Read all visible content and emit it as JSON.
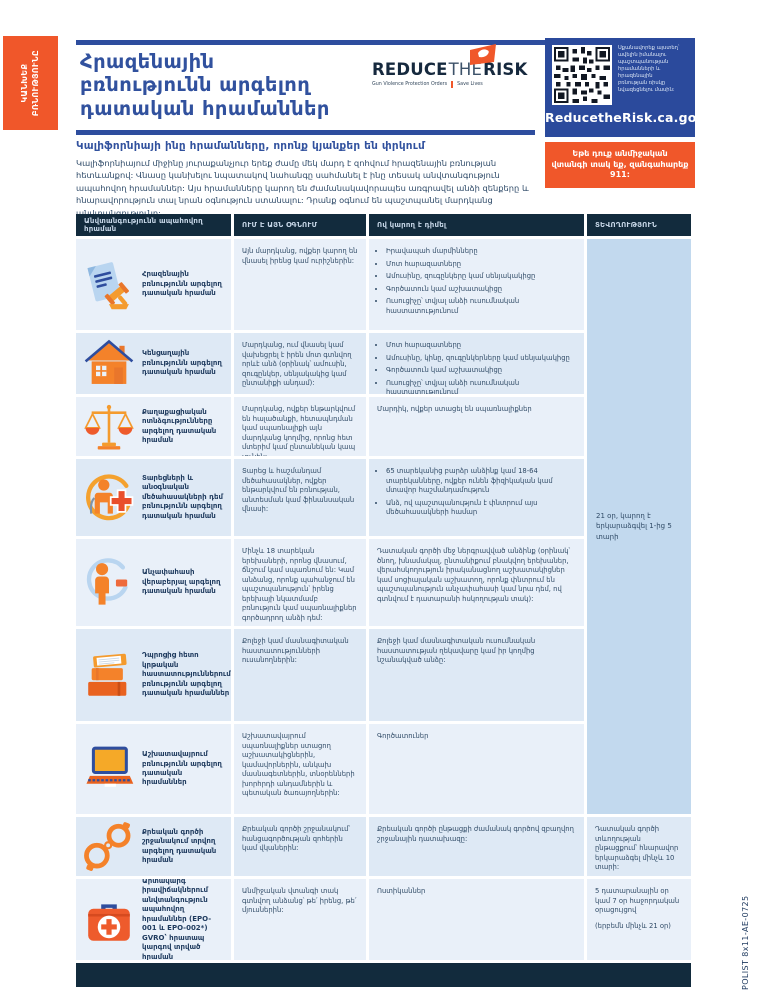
{
  "colors": {
    "accent_orange": "#f0572a",
    "royal_blue": "#2b4a9c",
    "title_blue": "#31519e",
    "dark_navy": "#122b3d",
    "row_light": "#e9f0f9",
    "row_alt": "#dee9f5",
    "duration_column": "#c2d9ee"
  },
  "tab": {
    "text": "ԿԱՆԽԵՔ\nԲՌՆՈՒԹՅՈՒՆԸ"
  },
  "header": {
    "title": "Հրազենային\nբռնությունն արգելող\nդատական հրամաններ",
    "logo": {
      "brand_1": "REDUCE",
      "brand_2": "THE",
      "brand_3": "RISK",
      "tagline_left": "Gun Violence Protection Orders",
      "tagline_right": "Save Lives"
    },
    "qr": {
      "scan_text": "Սքանավորեք այստեղ՝\nավելին իմանալու\nպաշտպանության\nհրամանների և\nհրազենային\nբռնության ռիսկը\nնվազեցնելու մասին:",
      "url": "ReducetheRisk.ca.gov"
    },
    "emergency": "Եթե դուք անմիջական\nվտանգի տակ եք, զանգահարեք\n911:"
  },
  "intro": {
    "heading": "Կալիֆորնիայի ինը հրամանները, որոնք կյանքեր են փրկում",
    "body": "Կալիֆորնիայում միջինը յուրաքանչյուր երեք ժամը մեկ մարդ է զոհվում հրազենային բռնության հետևանքով: Վնասը կանխելու նպատակով նահանգը սահմանել է ինը տեսակ անվտանգություն ապահովող հրամաններ: Այս հրամանները կարող են ժամանակավորապես առգրավել անձի զենքերը և հնարավորություն տալ նրան օգնություն ստանալու: Դրանք օգնում են պաշտպանել մարդկանց անվտանգությունը:"
  },
  "table": {
    "columns": [
      "Անվտանգությունն ապահովող հրաման",
      "ՈՒՄ Է ԱՅՆ ՕԳՆՈՒՄ",
      "Ով կարող է դիմել",
      "ՏԵՎՈՂՈՒԹՅՈՒՆ"
    ],
    "merged_duration": "21 օր, կարող է երկարաձգվել 1-ից 5 տարի",
    "rows": [
      {
        "icon": "gavel-document",
        "name": "Հրազենային բռնությունն արգելող դատական հրաման",
        "helps": "Այն մարդկանց, ովքեր կարող են վնասել իրենց կամ ուրիշներին:",
        "apply_bullets": [
          "Իրավապահ մարմինները",
          "Մոտ հարազատները",
          "Ամուսինը, զուգընկերը կամ սենյակակիցը",
          "Գործատուն կամ աշխատակիցը",
          "Ուսուցիչը՝ տվյալ անձի ուսումնական հաստատությունում"
        ]
      },
      {
        "icon": "house",
        "name": "Կենցաղային բռնությունն արգելող դատական հրաման",
        "helps": "Մարդկանց, ում վնասել կամ վախեցրել է իրեն մոտ գտնվող որևէ անձ (օրինակ՝ ամուսին, զուգընկեր, սենյակակից կամ ընտանիքի անդամ):",
        "apply_bullets": [
          "Մոտ հարազատները",
          "Ամուսինը, կինը, զուգընկերները կամ սենյակակիցը",
          "Գործատուն կամ աշխատակիցը",
          "Ուսուցիչը՝ տվյալ անձի ուսումնական հաստատությունում"
        ]
      },
      {
        "icon": "scales",
        "name": "Քաղաքացիական ոտնձգությունները արգելող դատական հրաման",
        "helps": "Մարդկանց, ովքեր ենթարկվում են հալածանքի, հետապնդման կամ սպառնալիքի այն մարդկանց կողմից, որոնց հետ մտերիմ կամ ընտանեկան կապ չունեն:",
        "apply_text": "Մարդիկ, ովքեր ստացել են սպառնալիքներ"
      },
      {
        "icon": "elder-care",
        "name": "Տարեցների և անօգնական մեծահասակների դեմ բռնությունն արգելող դատական հրաման",
        "helps": "Տարեց և հաշմանդամ մեծահասակներ, ովքեր ենթարկվում են բռնության, անտեսման կամ ֆինանսական վնասի:",
        "apply_bullets": [
          "65 տարեկանից բարձր անձինք կամ 18-64 տարեկանները, ովքեր ունեն ֆիզիկական կամ մտավոր հաշմանդամություն",
          "Անձ, ով պաշտպանություն է փնտրում այս մեծահասակների համար"
        ]
      },
      {
        "icon": "minor-person",
        "name": "Անչափահասի վերաբերյալ արգելող դատական հրաման",
        "helps": "Մինչև 18 տարեկան երեխաների, որոնց վնասում, ճնշում կամ սպառնում են: Կամ անձանց, որոնք պահանջում են պաշտպանություն՝ իրենց երեխայի նկատմամբ բռնություն կամ սպառնալիքներ գործադրող անձի դեմ:",
        "apply_text": "Դատական գործի մեջ ներգրավված անձինք (օրինակ՝ ծնող, խնամակալ, ընտանիքում բնակվող երեխաներ, վերահսկողություն իրականացնող աշխատակիցներ կամ սոցիալական աշխատող, որոնք փնտրում են պաշտպանություն անչափահասի կամ նրա դեմ, ով գտնվում է դատարանի հսկողության տակ):"
      },
      {
        "icon": "books",
        "name": "Դպրոցից հետո կրթական հաստատություններում բռնությունն արգելող դատական հրամաններ",
        "helps": "Քոլեջի կամ մասնագիտական հաստատությունների ուսանողներին:",
        "apply_text": "Քոլեջի կամ մասնագիտական ուսումնական հաստատության ղեկավարը կամ իր կողմից նշանակված անձը:"
      },
      {
        "icon": "laptop",
        "name": "Աշխատավայրում բռնությունն արգելող դատական հրամաններ",
        "helps": "Աշխատավայրում սպառնալիքներ ստացող աշխատակիցներին, կամավորներին, անկախ մասնագետներին, տնօրենների խորհրդի անդամներին և պետական ծառայողներին:",
        "apply_text": "Գործատուներ"
      },
      {
        "icon": "handcuffs",
        "name": "Քրեական գործի շրջանակում տրվող արգելող դատական հրաման",
        "helps": "Քրեական գործի շրջանակում՝ հանցագործության զոհերին կամ վկաներին:",
        "apply_text": "Քրեական գործի ընթացքի ժամանակ գործով զբաղվող շրջանային դատախազը:",
        "duration": [
          "Դատական գործի տևողության ընթացքում՝ հնարավոր երկարաձգել մինչև 10 տարի:"
        ]
      },
      {
        "icon": "first-aid-kit",
        "name": "Արտակարգ իրավիճակներում անվտանգություն ապահովող հրամաններ (EPO-001 և EPO-002*)\nGVRO՝ հրատապ կարգով տրված հրաման",
        "helps": "Անմիջական վտանգի տակ գտնվող անձանց՝ թե՛ իրենց, թե՛ մյուսներին:",
        "apply_text": "Ոստիկաններ",
        "duration": [
          "5 դատարանային օր կամ 7 օր հաջորդական օրացույցով",
          "(երբեմն մինչև 21 օր)"
        ]
      }
    ]
  },
  "footer": {
    "side_label": "POLIST 8x11-AE-0725"
  }
}
